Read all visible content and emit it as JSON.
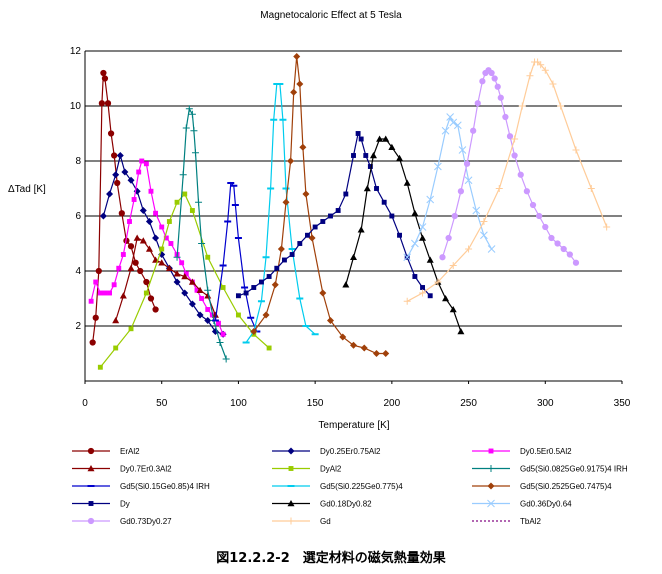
{
  "caption": "図12.2.2-2　選定材料の磁気熱量効果",
  "chart_data": {
    "type": "line",
    "title": "Magnetocaloric Effect at 5 Tesla",
    "xlabel": "Temperature [K]",
    "ylabel": "ΔTad [K]",
    "xlim": [
      0,
      350
    ],
    "ylim": [
      0,
      12
    ],
    "xticks": [
      "0",
      "50",
      "100",
      "150",
      "200",
      "250",
      "300",
      "350"
    ],
    "yticks": [
      "2",
      "4",
      "6",
      "8",
      "10",
      "12"
    ],
    "grid": "horizontal",
    "legend_position": "bottom",
    "series": [
      {
        "name": "ErAl2",
        "color": "#8B0000",
        "marker": "circle",
        "x": [
          5,
          7,
          9,
          11,
          12,
          13,
          15,
          17,
          19,
          21,
          24,
          27,
          30,
          33,
          36,
          40,
          43,
          46
        ],
        "y": [
          1.4,
          2.3,
          4.0,
          10.1,
          11.2,
          11.0,
          10.1,
          9.0,
          8.2,
          7.2,
          6.1,
          5.1,
          4.9,
          4.3,
          4.0,
          3.6,
          3.0,
          2.6
        ]
      },
      {
        "name": "Dy0.25Er0.75Al2",
        "color": "#000080",
        "marker": "diamond",
        "x": [
          12,
          16,
          20,
          23,
          26,
          30,
          34,
          38,
          42,
          46,
          50,
          55,
          60,
          65,
          70,
          75,
          80,
          85,
          90
        ],
        "y": [
          6.0,
          6.8,
          7.5,
          8.2,
          7.6,
          7.3,
          6.9,
          6.2,
          5.8,
          5.2,
          4.6,
          4.1,
          3.6,
          3.2,
          2.8,
          2.4,
          2.2,
          1.8,
          1.7
        ]
      },
      {
        "name": "Dy0.5Er0.5Al2",
        "color": "#FF00FF",
        "marker": "square",
        "x": [
          4,
          7,
          10,
          13,
          16,
          19,
          22,
          25,
          29,
          32,
          35,
          37,
          40,
          43,
          46,
          50,
          53,
          56,
          60,
          63,
          66,
          70,
          73,
          76,
          80,
          83,
          87,
          90
        ],
        "y": [
          2.9,
          3.6,
          3.2,
          3.2,
          3.2,
          3.5,
          4.1,
          4.6,
          5.8,
          6.6,
          7.6,
          8.0,
          7.9,
          6.9,
          6.1,
          5.6,
          5.2,
          5.0,
          4.6,
          4.3,
          3.9,
          3.6,
          3.3,
          3.0,
          2.6,
          2.4,
          2.1,
          1.7
        ]
      },
      {
        "name": "Dy0.7Er0.3Al2",
        "color": "#8B0000",
        "marker": "triangle",
        "x": [
          20,
          25,
          30,
          34,
          38,
          42,
          46,
          50,
          55,
          60,
          65,
          70,
          75,
          80,
          85
        ],
        "y": [
          2.2,
          3.1,
          4.1,
          5.2,
          5.1,
          4.8,
          4.4,
          4.3,
          4.1,
          3.9,
          3.8,
          3.6,
          3.3,
          3.1,
          2.4
        ]
      },
      {
        "name": "DyAl2",
        "color": "#99CC00",
        "marker": "square",
        "x": [
          10,
          20,
          30,
          40,
          50,
          55,
          60,
          65,
          70,
          80,
          90,
          100,
          110,
          120
        ],
        "y": [
          0.5,
          1.2,
          1.9,
          3.2,
          4.8,
          5.8,
          6.5,
          6.8,
          6.2,
          4.5,
          3.4,
          2.4,
          1.7,
          1.2
        ]
      },
      {
        "name": "Gd5(Si0.0825Ge0.9175)4 IRH",
        "color": "#008080",
        "marker": "plus",
        "x": [
          60,
          64,
          66,
          68,
          70,
          71,
          72,
          74,
          76,
          80,
          84,
          88,
          92
        ],
        "y": [
          4.5,
          7.5,
          9.2,
          9.9,
          9.7,
          9.1,
          8.3,
          6.5,
          5.0,
          3.3,
          2.2,
          1.4,
          0.8
        ]
      },
      {
        "name": "Gd5(Si0.15Ge0.85)4 IRH",
        "color": "#0000CD",
        "marker": "dash",
        "x": [
          85,
          90,
          93,
          95,
          97,
          98,
          100,
          104,
          108,
          112
        ],
        "y": [
          2.2,
          4.2,
          5.8,
          7.2,
          7.1,
          6.4,
          5.2,
          3.4,
          2.3,
          1.8
        ]
      },
      {
        "name": "Gd5(Si0.225Ge0.775)4",
        "color": "#00CCEE",
        "marker": "dash",
        "x": [
          105,
          110,
          115,
          118,
          121,
          123,
          125,
          127,
          129,
          131,
          135,
          140,
          144,
          150
        ],
        "y": [
          1.4,
          1.8,
          2.9,
          4.5,
          7.0,
          9.5,
          10.8,
          10.8,
          9.5,
          7.0,
          4.8,
          3.0,
          2.0,
          1.7
        ]
      },
      {
        "name": "Gd5(Si0.2525Ge0.7475)4",
        "color": "#A0400A",
        "marker": "diamond",
        "x": [
          110,
          118,
          124,
          128,
          131,
          134,
          136,
          138,
          140,
          142,
          144,
          148,
          155,
          160,
          168,
          175,
          182,
          190,
          196
        ],
        "y": [
          1.8,
          2.4,
          3.5,
          4.8,
          6.5,
          8.0,
          10.5,
          11.8,
          10.8,
          8.5,
          6.8,
          5.2,
          3.2,
          2.2,
          1.6,
          1.3,
          1.2,
          1.0,
          1.0
        ]
      },
      {
        "name": "Dy",
        "color": "#000080",
        "marker": "square",
        "x": [
          100,
          105,
          110,
          115,
          120,
          125,
          130,
          135,
          140,
          145,
          150,
          155,
          160,
          165,
          170,
          175,
          178,
          180,
          183,
          186,
          190,
          195,
          200,
          205,
          210,
          215,
          220,
          225
        ],
        "y": [
          3.1,
          3.2,
          3.4,
          3.6,
          3.8,
          4.1,
          4.4,
          4.6,
          5.0,
          5.3,
          5.6,
          5.8,
          6.0,
          6.2,
          6.8,
          8.2,
          9.0,
          8.8,
          8.2,
          7.8,
          7.0,
          6.5,
          6.0,
          5.3,
          4.5,
          3.8,
          3.4,
          3.1
        ]
      },
      {
        "name": "Gd0.18Dy0.82",
        "color": "#000000",
        "marker": "triangle",
        "x": [
          170,
          175,
          180,
          184,
          188,
          192,
          196,
          200,
          205,
          210,
          215,
          220,
          225,
          230,
          235,
          240,
          245
        ],
        "y": [
          3.5,
          4.5,
          5.5,
          7.0,
          8.2,
          8.8,
          8.8,
          8.5,
          8.1,
          7.2,
          6.1,
          5.2,
          4.4,
          3.6,
          3.0,
          2.6,
          1.8
        ]
      },
      {
        "name": "Gd0.36Dy0.64",
        "color": "#99CCFF",
        "marker": "x",
        "x": [
          210,
          215,
          220,
          225,
          230,
          235,
          238,
          240,
          243,
          246,
          250,
          255,
          260,
          265
        ],
        "y": [
          4.5,
          5.0,
          5.6,
          6.6,
          7.8,
          9.1,
          9.6,
          9.4,
          9.3,
          8.4,
          7.3,
          6.2,
          5.3,
          4.8
        ]
      },
      {
        "name": "Gd0.73Dy0.27",
        "color": "#CC99FF",
        "marker": "circle",
        "x": [
          233,
          237,
          241,
          245,
          249,
          253,
          256,
          259,
          261,
          263,
          265,
          267,
          269,
          271,
          274,
          277,
          280,
          284,
          288,
          292,
          296,
          300,
          304,
          308,
          312,
          316,
          320
        ],
        "y": [
          4.5,
          5.2,
          6.0,
          6.9,
          7.9,
          9.1,
          10.1,
          10.9,
          11.2,
          11.3,
          11.2,
          11.0,
          10.7,
          10.3,
          9.6,
          8.9,
          8.2,
          7.5,
          6.9,
          6.4,
          6.0,
          5.6,
          5.2,
          5.0,
          4.8,
          4.6,
          4.3
        ]
      },
      {
        "name": "Gd",
        "color": "#FFCC99",
        "marker": "plus",
        "x": [
          210,
          220,
          230,
          240,
          250,
          260,
          270,
          280,
          285,
          290,
          293,
          295,
          297,
          300,
          305,
          310,
          320,
          330,
          340
        ],
        "y": [
          2.9,
          3.2,
          3.6,
          4.2,
          4.8,
          5.8,
          7.0,
          8.8,
          10.0,
          11.1,
          11.6,
          11.6,
          11.5,
          11.3,
          10.8,
          10.0,
          8.4,
          7.0,
          5.6
        ]
      },
      {
        "name": "TbAl2",
        "color": "#993399",
        "marker": "none",
        "x": [],
        "y": []
      }
    ]
  }
}
